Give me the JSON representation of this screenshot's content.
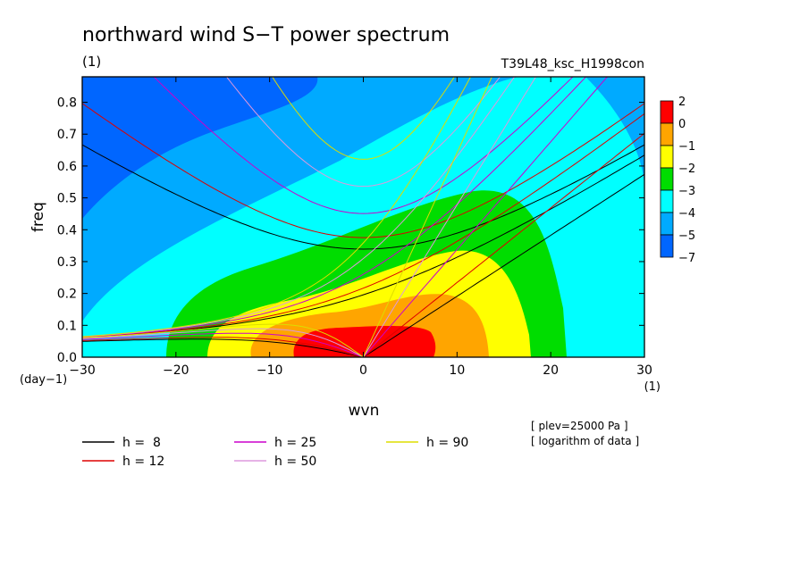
{
  "chart_data": {
    "type": "heatmap",
    "title": "northward wind S−T power spectrum",
    "unit_label": "(1)",
    "run_label": "T39L48_ksc_H1998con",
    "xlabel": "wvn",
    "x_unit": "(1)",
    "ylabel": "freq",
    "y_unit": "(day−1)",
    "xlim": [
      -30,
      30
    ],
    "ylim": [
      0,
      0.88
    ],
    "x_ticks": [
      -30,
      -20,
      -10,
      0,
      10,
      20,
      30
    ],
    "x_tick_labels": [
      "−30",
      "−20",
      "−10",
      "0",
      "10",
      "20",
      "30"
    ],
    "y_ticks": [
      0,
      0.1,
      0.2,
      0.3,
      0.4,
      0.5,
      0.6,
      0.7,
      0.8
    ],
    "y_tick_labels": [
      "0.0",
      "0.1",
      "0.2",
      "0.3",
      "0.4",
      "0.5",
      "0.6",
      "0.7",
      "0.8"
    ],
    "colorbar": {
      "levels": [
        "2",
        "0",
        "−1",
        "−2",
        "−3",
        "−4",
        "−5",
        "−7"
      ],
      "colors": [
        "#ff0000",
        "#ffa500",
        "#ffff00",
        "#00dd00",
        "#00ffff",
        "#00aaff",
        "#0066ff"
      ]
    },
    "contour_regions": [
      {
        "level": "-7 to -5",
        "color": "#0066ff"
      },
      {
        "level": "-5 to -4",
        "color": "#00aaff"
      },
      {
        "level": "-4 to -3",
        "color": "#00ffff"
      },
      {
        "level": "-3 to -2",
        "color": "#00dd00"
      },
      {
        "level": "-2 to -1",
        "color": "#ffff00"
      },
      {
        "level": "-1 to 0",
        "color": "#ffa500"
      },
      {
        "level": "0 to 2",
        "color": "#ff0000"
      }
    ],
    "series": [
      {
        "name": "h =  8",
        "h": 8,
        "color": "#000000"
      },
      {
        "name": "h = 12",
        "h": 12,
        "color": "#dd0000"
      },
      {
        "name": "h = 25",
        "h": 25,
        "color": "#cc00cc"
      },
      {
        "name": "h = 50",
        "h": 50,
        "color": "#dd99dd"
      },
      {
        "name": "h = 90",
        "h": 90,
        "color": "#dddd00"
      }
    ],
    "annotations": [
      "[ plev=25000 Pa ]",
      "[ logarithm of data ]"
    ]
  }
}
